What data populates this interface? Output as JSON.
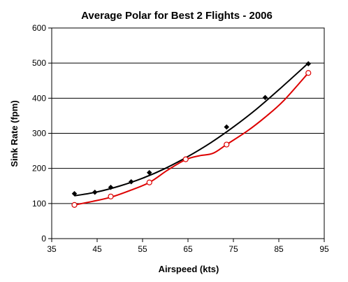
{
  "chart_data": {
    "type": "scatter",
    "title": "Average Polar for Best 2 Flights -  2006",
    "xlabel": "Airspeed (kts)",
    "ylabel": "Sink Rate (fpm)",
    "xlim": [
      35,
      95
    ],
    "ylim": [
      0,
      600
    ],
    "x_ticks": [
      "35",
      "45",
      "55",
      "65",
      "75",
      "85",
      "95"
    ],
    "y_ticks": [
      "0",
      "100",
      "200",
      "300",
      "400",
      "500",
      "600"
    ],
    "grid": "horizontal major gridlines",
    "legend": "none",
    "series": [
      {
        "color": "#000000",
        "marker": "filled-diamond",
        "points": [
          {
            "x": 40,
            "y": 128
          },
          {
            "x": 44.5,
            "y": 132
          },
          {
            "x": 48,
            "y": 146
          },
          {
            "x": 52.5,
            "y": 162
          },
          {
            "x": 56.5,
            "y": 188
          },
          {
            "x": 64.5,
            "y": 226
          },
          {
            "x": 73.5,
            "y": 318
          },
          {
            "x": 82,
            "y": 402
          },
          {
            "x": 91.5,
            "y": 498
          }
        ],
        "trend": [
          {
            "x": 40,
            "y": 122
          },
          {
            "x": 45,
            "y": 133
          },
          {
            "x": 50,
            "y": 150
          },
          {
            "x": 55,
            "y": 172
          },
          {
            "x": 60,
            "y": 200
          },
          {
            "x": 65,
            "y": 234
          },
          {
            "x": 70,
            "y": 273
          },
          {
            "x": 75,
            "y": 318
          },
          {
            "x": 80,
            "y": 368
          },
          {
            "x": 85,
            "y": 424
          },
          {
            "x": 91.5,
            "y": 500
          }
        ]
      },
      {
        "color": "#dd0000",
        "marker": "open-circle",
        "points": [
          {
            "x": 40,
            "y": 96
          },
          {
            "x": 48,
            "y": 120
          },
          {
            "x": 56.5,
            "y": 160
          },
          {
            "x": 64.5,
            "y": 226
          },
          {
            "x": 73.5,
            "y": 268
          },
          {
            "x": 91.5,
            "y": 472
          }
        ],
        "trend": [
          {
            "x": 40,
            "y": 96
          },
          {
            "x": 44,
            "y": 106
          },
          {
            "x": 48,
            "y": 118
          },
          {
            "x": 52,
            "y": 136
          },
          {
            "x": 56.5,
            "y": 160
          },
          {
            "x": 60.5,
            "y": 195
          },
          {
            "x": 64.5,
            "y": 225
          },
          {
            "x": 67.5,
            "y": 236
          },
          {
            "x": 70.5,
            "y": 243
          },
          {
            "x": 73.5,
            "y": 268
          },
          {
            "x": 78,
            "y": 306
          },
          {
            "x": 82,
            "y": 346
          },
          {
            "x": 86,
            "y": 392
          },
          {
            "x": 91.5,
            "y": 472
          }
        ]
      }
    ]
  }
}
